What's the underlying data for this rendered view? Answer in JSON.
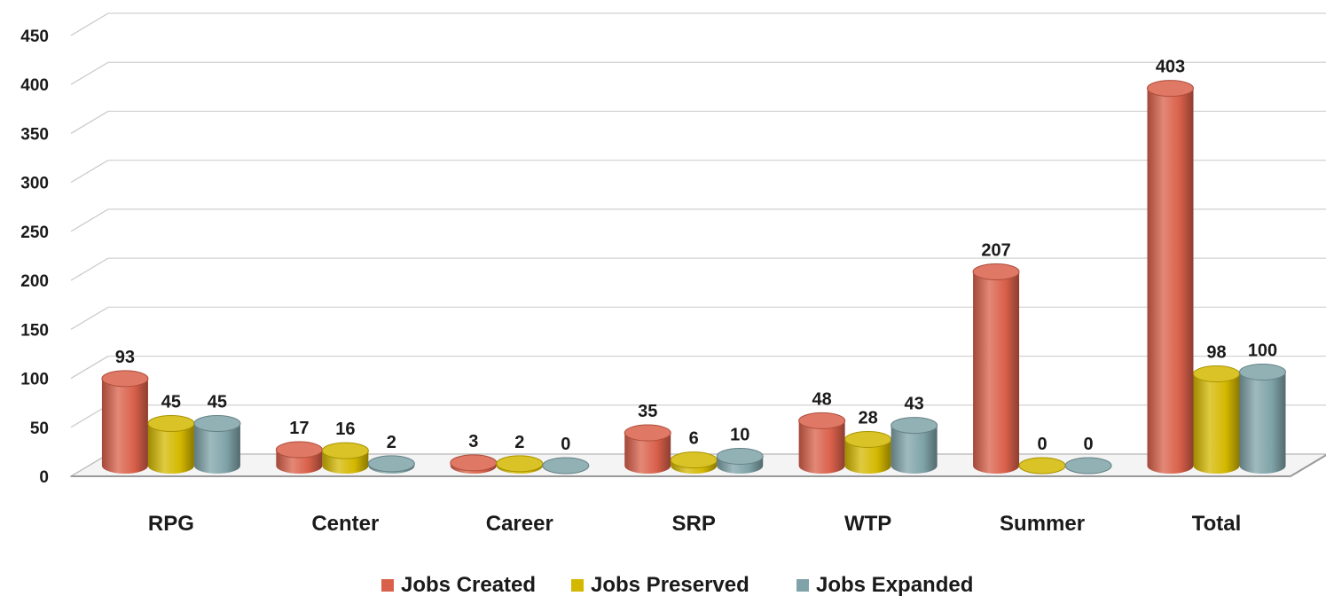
{
  "chart_data": {
    "type": "bar",
    "categories": [
      "RPG",
      "Center",
      "Career",
      "SRP",
      "WTP",
      "Summer",
      "Total"
    ],
    "series": [
      {
        "name": "Jobs Created",
        "color": "#d9604a",
        "values": [
          93,
          17,
          3,
          35,
          48,
          207,
          403
        ]
      },
      {
        "name": "Jobs Preserved",
        "color": "#d4b800",
        "values": [
          45,
          16,
          2,
          6,
          28,
          0,
          98
        ]
      },
      {
        "name": "Jobs Expanded",
        "color": "#7fa3a8",
        "values": [
          45,
          2,
          0,
          10,
          43,
          0,
          100
        ]
      }
    ],
    "yticks": [
      "0",
      "50",
      "100",
      "150",
      "200",
      "250",
      "300",
      "350",
      "400",
      "450"
    ],
    "ylim": [
      0,
      450
    ],
    "grid": true,
    "legend_position": "bottom",
    "style": "3d-cylinder"
  }
}
